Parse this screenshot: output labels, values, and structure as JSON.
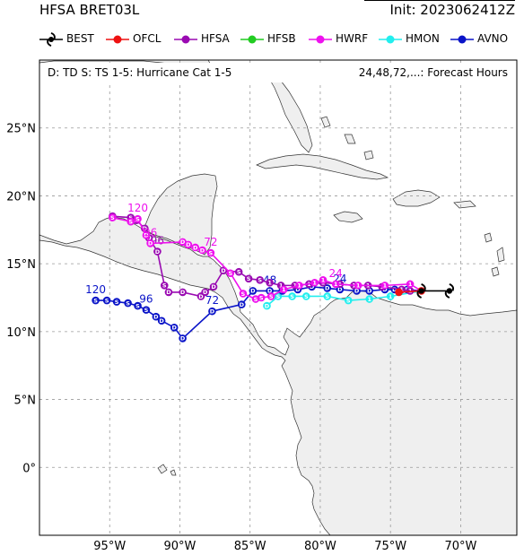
{
  "header": {
    "title_left": "HFSA BRET03L",
    "title_right": "Init: 2023062412Z"
  },
  "legend": [
    {
      "name": "BEST",
      "color": "#000000",
      "icon": "hurricane-symbol"
    },
    {
      "name": "OFCL",
      "color": "#ee1111",
      "icon": "dot"
    },
    {
      "name": "HFSA",
      "color": "#9a0ab2",
      "icon": "dot"
    },
    {
      "name": "HFSB",
      "color": "#22cc22",
      "icon": "dot"
    },
    {
      "name": "HWRF",
      "color": "#ee11ee",
      "icon": "dot"
    },
    {
      "name": "HMON",
      "color": "#22eeee",
      "icon": "dot"
    },
    {
      "name": "AVNO",
      "color": "#0a14c8",
      "icon": "dot"
    }
  ],
  "map": {
    "legend_note_left": "D: TD  S: TS  1-5: Hurricane Cat 1-5",
    "legend_note_right": "24,48,72,...: Forecast Hours",
    "lon_range": [
      -100,
      -66
    ],
    "lat_range": [
      -5,
      30
    ],
    "lon_ticks": [
      {
        "value": -95,
        "label": "95°W"
      },
      {
        "value": -90,
        "label": "90°W"
      },
      {
        "value": -85,
        "label": "85°W"
      },
      {
        "value": -80,
        "label": "80°W"
      },
      {
        "value": -75,
        "label": "75°W"
      },
      {
        "value": -70,
        "label": "70°W"
      }
    ],
    "lat_ticks": [
      {
        "value": 0,
        "label": "0°"
      },
      {
        "value": 5,
        "label": "5°N"
      },
      {
        "value": 10,
        "label": "10°N"
      },
      {
        "value": 15,
        "label": "15°N"
      },
      {
        "value": 20,
        "label": "20°N"
      },
      {
        "value": 25,
        "label": "25°N"
      }
    ],
    "land_color": "#efefef",
    "grid": true
  },
  "tracks": [
    {
      "model": "BEST",
      "color": "#000000",
      "points": [
        [
          -70.8,
          13.0
        ],
        [
          -72.8,
          13.0
        ]
      ],
      "hour_labels": []
    },
    {
      "model": "OFCL",
      "color": "#ee1111",
      "points": [
        [
          -72.8,
          13.0
        ],
        [
          -74.4,
          12.9
        ]
      ],
      "hour_labels": []
    },
    {
      "model": "HFSA",
      "color": "#9a0ab2",
      "points": [
        [
          -72.8,
          13.0
        ],
        [
          -73.6,
          13.0
        ],
        [
          -74.2,
          13.1
        ],
        [
          -75.6,
          13.3
        ],
        [
          -76.6,
          13.4
        ],
        [
          -77.6,
          13.4
        ],
        [
          -78.6,
          13.5
        ],
        [
          -79.8,
          13.6
        ],
        [
          -80.8,
          13.5
        ],
        [
          -81.8,
          13.4
        ],
        [
          -82.8,
          13.4
        ],
        [
          -83.6,
          13.6
        ],
        [
          -84.3,
          13.8
        ],
        [
          -85.1,
          13.9
        ],
        [
          -85.8,
          14.4
        ],
        [
          -86.9,
          14.5
        ],
        [
          -87.6,
          13.3
        ],
        [
          -88.2,
          12.9
        ],
        [
          -88.5,
          12.6
        ],
        [
          -89.8,
          12.9
        ],
        [
          -90.8,
          12.9
        ],
        [
          -91.1,
          13.4
        ],
        [
          -91.6,
          15.9
        ],
        [
          -92.2,
          16.9
        ],
        [
          -92.5,
          17.6
        ],
        [
          -93.1,
          18.2
        ],
        [
          -93.5,
          18.4
        ],
        [
          -94.8,
          18.5
        ]
      ],
      "point_labels": [
        "",
        "1",
        "1",
        "1",
        "1",
        "1",
        "1",
        "1",
        "1",
        "1",
        "1",
        "1",
        "S",
        "S",
        "S",
        "D",
        "D",
        "D",
        "D",
        "D",
        "D",
        "S",
        "D",
        "D",
        "D",
        "S",
        "S",
        "S"
      ],
      "hour_labels": [
        {
          "label": "96",
          "point": 22
        }
      ]
    },
    {
      "model": "HWRF",
      "color": "#ee11ee",
      "points": [
        [
          -72.8,
          13.0
        ],
        [
          -73.6,
          13.5
        ],
        [
          -75.4,
          13.4
        ],
        [
          -77.3,
          13.4
        ],
        [
          -78.9,
          13.5
        ],
        [
          -79.8,
          13.8
        ],
        [
          -80.4,
          13.6
        ],
        [
          -81.5,
          13.4
        ],
        [
          -82.6,
          13.1
        ],
        [
          -83.5,
          12.6
        ],
        [
          -84.2,
          12.5
        ],
        [
          -84.6,
          12.4
        ],
        [
          -85.5,
          12.8
        ],
        [
          -86.4,
          14.3
        ],
        [
          -87.8,
          15.8
        ],
        [
          -88.4,
          16.0
        ],
        [
          -88.9,
          16.2
        ],
        [
          -89.4,
          16.4
        ],
        [
          -89.8,
          16.6
        ],
        [
          -92.1,
          16.5
        ],
        [
          -92.4,
          17.1
        ],
        [
          -93.0,
          18.3
        ],
        [
          -93.5,
          18.1
        ],
        [
          -94.8,
          18.4
        ]
      ],
      "point_labels": [
        "",
        "1",
        "1",
        "1",
        "1",
        "1",
        "1",
        "1",
        "1",
        "S",
        "S",
        "S",
        "S",
        "S",
        "S",
        "D",
        "D",
        "D",
        "D",
        "D",
        "D",
        "S",
        "S",
        "S"
      ],
      "hour_labels": [
        {
          "label": "24",
          "point": 4
        },
        {
          "label": "72",
          "point": 14
        },
        {
          "label": "96",
          "point": 19
        },
        {
          "label": "120",
          "point": 21
        }
      ]
    },
    {
      "model": "HMON",
      "color": "#22eeee",
      "points": [
        [
          -72.8,
          13.0
        ],
        [
          -75.0,
          12.6
        ],
        [
          -76.5,
          12.4
        ],
        [
          -78.0,
          12.3
        ],
        [
          -79.5,
          12.6
        ],
        [
          -81.0,
          12.6
        ],
        [
          -82.0,
          12.6
        ],
        [
          -83.0,
          12.6
        ],
        [
          -83.8,
          11.9
        ]
      ],
      "point_labels": [
        "",
        "1",
        "1",
        "S",
        "S",
        "S",
        "S",
        "S",
        "D"
      ],
      "hour_labels": []
    },
    {
      "model": "AVNO",
      "color": "#0a14c8",
      "points": [
        [
          -72.8,
          13.0
        ],
        [
          -73.8,
          13.1
        ],
        [
          -74.7,
          13.1
        ],
        [
          -75.4,
          13.1
        ],
        [
          -76.5,
          13.0
        ],
        [
          -77.4,
          13.0
        ],
        [
          -78.6,
          13.1
        ],
        [
          -79.5,
          13.2
        ],
        [
          -80.6,
          13.3
        ],
        [
          -81.6,
          13.1
        ],
        [
          -82.7,
          13.0
        ],
        [
          -83.6,
          13.0
        ],
        [
          -84.8,
          13.0
        ],
        [
          -85.6,
          12.0
        ],
        [
          -87.7,
          11.5
        ],
        [
          -89.8,
          9.5
        ],
        [
          -90.4,
          10.3
        ],
        [
          -91.3,
          10.8
        ],
        [
          -91.7,
          11.1
        ],
        [
          -92.4,
          11.6
        ],
        [
          -93.0,
          11.9
        ],
        [
          -93.7,
          12.1
        ],
        [
          -94.5,
          12.2
        ],
        [
          -95.2,
          12.3
        ],
        [
          -96.0,
          12.3
        ]
      ],
      "point_labels": [
        "",
        "D",
        "D",
        "D",
        "D",
        "D",
        "D",
        "D",
        "D",
        "D",
        "D",
        "D",
        "D",
        "D",
        "D",
        "D",
        "D",
        "D",
        "D",
        "S",
        "S",
        "S",
        "S",
        "S",
        "S"
      ],
      "hour_labels": [
        {
          "label": "24",
          "point": 6
        },
        {
          "label": "48",
          "point": 11
        },
        {
          "label": "72",
          "point": 14
        },
        {
          "label": "96",
          "point": 19
        },
        {
          "label": "120",
          "point": 24
        }
      ]
    }
  ]
}
